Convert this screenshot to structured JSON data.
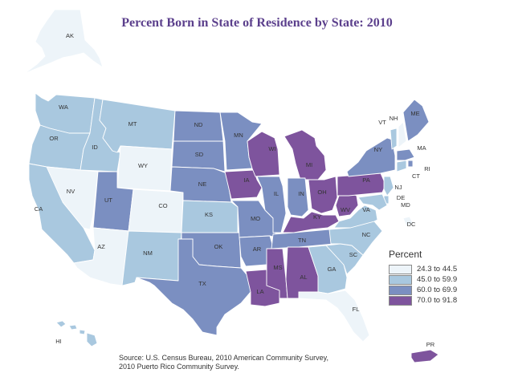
{
  "title": "Percent Born in State of Residence by State: 2010",
  "legend": {
    "title": "Percent",
    "classes": [
      {
        "label": "24.3 to 44.5",
        "color": "#edf4f9"
      },
      {
        "label": "45.0 to 59.9",
        "color": "#a9c8df"
      },
      {
        "label": "60.0 to 69.9",
        "color": "#7b8fc1"
      },
      {
        "label": "70.0 to 91.8",
        "color": "#7e549d"
      }
    ]
  },
  "states": [
    {
      "abbr": "AK",
      "class": 0
    },
    {
      "abbr": "HI",
      "class": 1
    },
    {
      "abbr": "WA",
      "class": 1
    },
    {
      "abbr": "OR",
      "class": 1
    },
    {
      "abbr": "CA",
      "class": 1
    },
    {
      "abbr": "NV",
      "class": 0
    },
    {
      "abbr": "ID",
      "class": 1
    },
    {
      "abbr": "MT",
      "class": 1
    },
    {
      "abbr": "WY",
      "class": 0
    },
    {
      "abbr": "UT",
      "class": 2
    },
    {
      "abbr": "CO",
      "class": 0
    },
    {
      "abbr": "AZ",
      "class": 0
    },
    {
      "abbr": "NM",
      "class": 1
    },
    {
      "abbr": "ND",
      "class": 2
    },
    {
      "abbr": "SD",
      "class": 2
    },
    {
      "abbr": "NE",
      "class": 2
    },
    {
      "abbr": "KS",
      "class": 1
    },
    {
      "abbr": "OK",
      "class": 2
    },
    {
      "abbr": "TX",
      "class": 2
    },
    {
      "abbr": "MN",
      "class": 2
    },
    {
      "abbr": "IA",
      "class": 3
    },
    {
      "abbr": "MO",
      "class": 2
    },
    {
      "abbr": "AR",
      "class": 2
    },
    {
      "abbr": "LA",
      "class": 3
    },
    {
      "abbr": "WI",
      "class": 3
    },
    {
      "abbr": "IL",
      "class": 2
    },
    {
      "abbr": "MI",
      "class": 3
    },
    {
      "abbr": "IN",
      "class": 2
    },
    {
      "abbr": "OH",
      "class": 3
    },
    {
      "abbr": "KY",
      "class": 3
    },
    {
      "abbr": "TN",
      "class": 2
    },
    {
      "abbr": "MS",
      "class": 3
    },
    {
      "abbr": "AL",
      "class": 3
    },
    {
      "abbr": "GA",
      "class": 1
    },
    {
      "abbr": "FL",
      "class": 0
    },
    {
      "abbr": "SC",
      "class": 1
    },
    {
      "abbr": "NC",
      "class": 1
    },
    {
      "abbr": "VA",
      "class": 1
    },
    {
      "abbr": "WV",
      "class": 3
    },
    {
      "abbr": "PA",
      "class": 3
    },
    {
      "abbr": "NY",
      "class": 2
    },
    {
      "abbr": "VT",
      "class": 1
    },
    {
      "abbr": "NH",
      "class": 0
    },
    {
      "abbr": "ME",
      "class": 2
    },
    {
      "abbr": "MA",
      "class": 2
    },
    {
      "abbr": "RI",
      "class": 2
    },
    {
      "abbr": "CT",
      "class": 1
    },
    {
      "abbr": "NJ",
      "class": 1
    },
    {
      "abbr": "DE",
      "class": 1
    },
    {
      "abbr": "MD",
      "class": 1
    },
    {
      "abbr": "DC",
      "class": 0
    },
    {
      "abbr": "PR",
      "class": 3
    }
  ],
  "source": {
    "line1": "Source: U.S. Census Bureau, 2010 American Community Survey,",
    "line2": "2010 Puerto Rico Community Survey."
  }
}
